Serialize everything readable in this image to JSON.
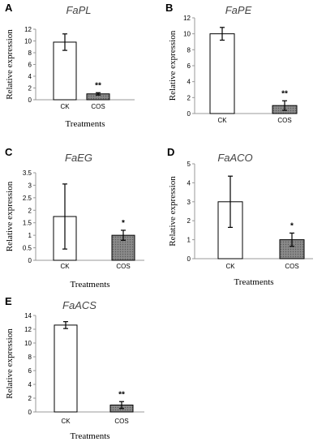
{
  "chart_data": [
    {
      "type": "bar",
      "panel": "A",
      "title": "FaPL",
      "categories": [
        "CK",
        "COS"
      ],
      "values": [
        9.8,
        1.0
      ],
      "errors": [
        1.4,
        0.2
      ],
      "significance": [
        "",
        "**"
      ],
      "ylabel": "Relative expression",
      "xlabel": "Treatments",
      "ylim": [
        0,
        12
      ],
      "yticks": [
        0,
        2,
        4,
        6,
        8,
        10,
        12
      ]
    },
    {
      "type": "bar",
      "panel": "B",
      "title": "FaPE",
      "categories": [
        "CK",
        "COS"
      ],
      "values": [
        10.0,
        1.0
      ],
      "errors": [
        0.8,
        0.6
      ],
      "significance": [
        "",
        "**"
      ],
      "ylabel": "Relative expression",
      "xlabel": "",
      "ylim": [
        0,
        12
      ],
      "yticks": [
        0,
        2,
        4,
        6,
        8,
        10,
        12
      ]
    },
    {
      "type": "bar",
      "panel": "C",
      "title": "FaEG",
      "categories": [
        "CK",
        "COS"
      ],
      "values": [
        1.75,
        1.0
      ],
      "errors": [
        1.3,
        0.2
      ],
      "significance": [
        "",
        "*"
      ],
      "ylabel": "Relative expression",
      "xlabel": "Treatments",
      "ylim": [
        0,
        3.5
      ],
      "yticks": [
        0,
        0.5,
        1,
        1.5,
        2,
        2.5,
        3,
        3.5
      ]
    },
    {
      "type": "bar",
      "panel": "D",
      "title": "FaACO",
      "categories": [
        "CK",
        "COS"
      ],
      "values": [
        3.0,
        1.0
      ],
      "errors": [
        1.35,
        0.35
      ],
      "significance": [
        "",
        "*"
      ],
      "ylabel": "Relative expression",
      "xlabel": "Treatments",
      "ylim": [
        0,
        5
      ],
      "yticks": [
        0,
        1,
        2,
        3,
        4,
        5
      ]
    },
    {
      "type": "bar",
      "panel": "E",
      "title": "FaACS",
      "categories": [
        "CK",
        "COS"
      ],
      "values": [
        12.6,
        1.0
      ],
      "errors": [
        0.5,
        0.5
      ],
      "significance": [
        "",
        "**"
      ],
      "ylabel": "Relative expression",
      "xlabel": "Treatments",
      "ylim": [
        0,
        14
      ],
      "yticks": [
        0,
        2,
        4,
        6,
        8,
        10,
        12,
        14
      ]
    }
  ]
}
